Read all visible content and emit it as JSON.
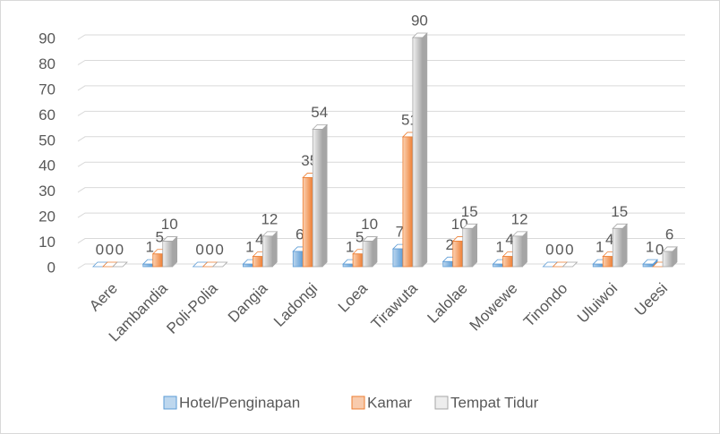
{
  "chart_data": {
    "type": "bar3d",
    "categories": [
      "Aere",
      "Lambandia",
      "Poli-Polia",
      "Dangia",
      "Ladongi",
      "Loea",
      "Tirawuta",
      "Lalolae",
      "Mowewe",
      "Tinondo",
      "Uluiwoi",
      "Ueesi"
    ],
    "series": [
      {
        "name": "Hotel/Penginapan",
        "color": "#5b9bd5",
        "values": [
          0,
          1,
          0,
          1,
          6,
          1,
          7,
          2,
          1,
          0,
          1,
          1
        ]
      },
      {
        "name": "Kamar",
        "color": "#ed7d31",
        "values": [
          0,
          5,
          0,
          4,
          35,
          5,
          51,
          10,
          4,
          0,
          4,
          0
        ]
      },
      {
        "name": "Tempat Tidur",
        "color": "#a5a5a5",
        "values": [
          0,
          10,
          0,
          12,
          54,
          10,
          90,
          15,
          12,
          0,
          15,
          6
        ]
      }
    ],
    "ylim": [
      0,
      90
    ],
    "yticks": [
      0,
      10,
      20,
      30,
      40,
      50,
      60,
      70,
      80,
      90
    ],
    "grid": true,
    "legend": "bottom"
  }
}
